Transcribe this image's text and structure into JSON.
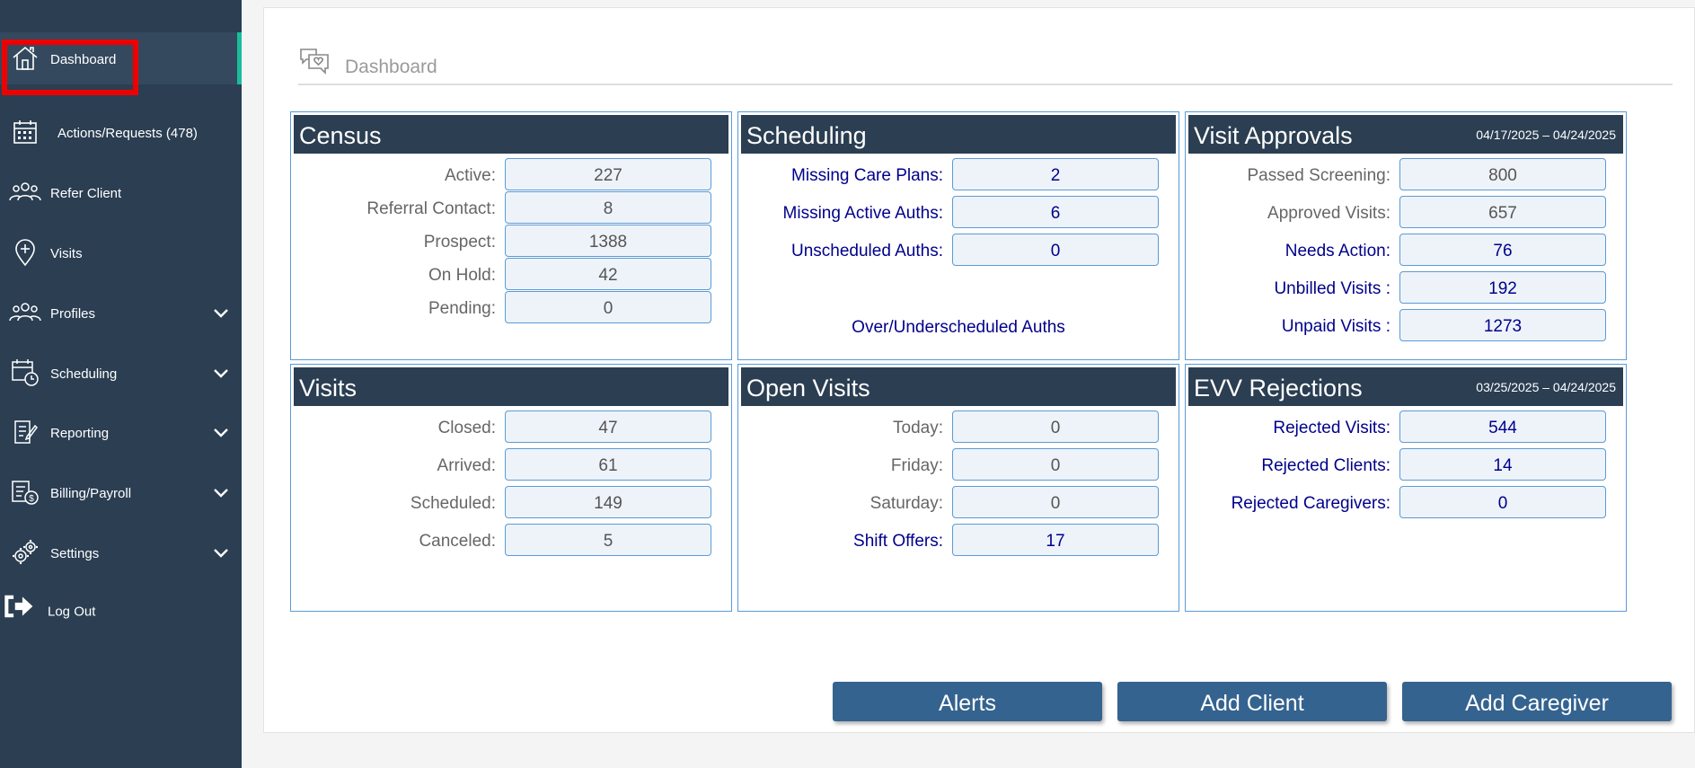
{
  "sidebar": {
    "items": [
      {
        "label": "Dashboard",
        "icon": "home-icon"
      },
      {
        "label": "Actions/Requests (478)",
        "icon": "calendar-icon"
      },
      {
        "label": "Refer Client",
        "icon": "people-icon"
      },
      {
        "label": "Visits",
        "icon": "location-pin-icon"
      },
      {
        "label": "Profiles",
        "icon": "people-icon"
      },
      {
        "label": "Scheduling",
        "icon": "calendar-clock-icon"
      },
      {
        "label": "Reporting",
        "icon": "document-edit-icon"
      },
      {
        "label": "Billing/Payroll",
        "icon": "billing-icon"
      },
      {
        "label": "Settings",
        "icon": "gears-icon"
      },
      {
        "label": "Log Out",
        "icon": "logout-icon"
      }
    ]
  },
  "header": {
    "title": "Dashboard"
  },
  "census": {
    "title": "Census",
    "rows": [
      {
        "label": "Active:",
        "value": "227"
      },
      {
        "label": "Referral Contact:",
        "value": "8"
      },
      {
        "label": "Prospect:",
        "value": "1388"
      },
      {
        "label": "On Hold:",
        "value": "42"
      },
      {
        "label": "Pending:",
        "value": "0"
      }
    ]
  },
  "scheduling": {
    "title": "Scheduling",
    "rows": [
      {
        "label": "Missing Care Plans:",
        "value": "2"
      },
      {
        "label": "Missing Active Auths:",
        "value": "6"
      },
      {
        "label": "Unscheduled Auths:",
        "value": "0"
      }
    ],
    "link": "Over/Underscheduled Auths"
  },
  "visit_approvals": {
    "title": "Visit Approvals",
    "range": "04/17/2025 – 04/24/2025",
    "rows": [
      {
        "label": "Passed Screening:",
        "value": "800"
      },
      {
        "label": "Approved Visits:",
        "value": "657"
      },
      {
        "label": "Needs Action:",
        "value": "76"
      },
      {
        "label": "Unbilled Visits :",
        "value": "192"
      },
      {
        "label": "Unpaid Visits :",
        "value": "1273"
      }
    ]
  },
  "visits": {
    "title": "Visits",
    "rows": [
      {
        "label": "Closed:",
        "value": "47"
      },
      {
        "label": "Arrived:",
        "value": "61"
      },
      {
        "label": "Scheduled:",
        "value": "149"
      },
      {
        "label": "Canceled:",
        "value": "5"
      }
    ]
  },
  "open_visits": {
    "title": "Open Visits",
    "rows": [
      {
        "label": "Today:",
        "value": "0"
      },
      {
        "label": "Friday:",
        "value": "0"
      },
      {
        "label": "Saturday:",
        "value": "0"
      },
      {
        "label": "Shift Offers:",
        "value": "17"
      }
    ]
  },
  "evv_rejections": {
    "title": "EVV Rejections",
    "range": "03/25/2025 – 04/24/2025",
    "rows": [
      {
        "label": "Rejected Visits:",
        "value": "544"
      },
      {
        "label": "Rejected Clients:",
        "value": "14"
      },
      {
        "label": "Rejected Caregivers:",
        "value": "0"
      }
    ]
  },
  "buttons": {
    "alerts": "Alerts",
    "add_client": "Add Client",
    "add_caregiver": "Add Caregiver"
  },
  "colors": {
    "sidebar_bg": "#2b3e52",
    "card_header_bg": "#2b3e52",
    "button_bg": "#34638f",
    "link_text": "#00008b",
    "accent": "#1abc9c",
    "highlight": "#ee0000"
  }
}
